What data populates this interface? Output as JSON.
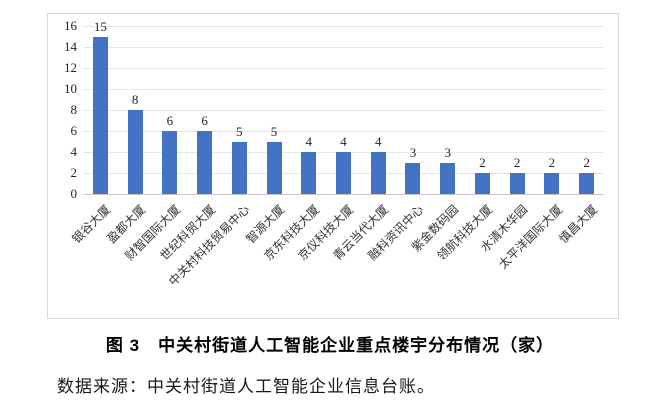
{
  "chart_data": {
    "type": "bar",
    "categories": [
      "银谷大厦",
      "盈都大厦",
      "财智国际大厦",
      "世纪科贸大厦",
      "中关村科技贸易中心",
      "智源大厦",
      "京东科技大厦",
      "京仪科技大厦",
      "青云当代大厦",
      "融科资讯中心",
      "紫金数码园",
      "领航科技大厦",
      "水清木华园",
      "太平洋国际大厦",
      "慎昌大厦"
    ],
    "values": [
      15,
      8,
      6,
      6,
      5,
      5,
      4,
      4,
      4,
      3,
      3,
      2,
      2,
      2,
      2
    ],
    "title": "",
    "xlabel": "",
    "ylabel": "",
    "ylim": [
      0,
      16
    ],
    "yticks": [
      0,
      2,
      4,
      6,
      8,
      10,
      12,
      14,
      16
    ],
    "grid": true,
    "legend": "none",
    "data_labels": true,
    "bar_color": "#4472C4"
  },
  "caption": {
    "text": "图 3　中关村街道人工智能企业重点楼宇分布情况（家）"
  },
  "source": {
    "text": "数据来源：中关村街道人工智能企业信息台账。"
  },
  "colors": {
    "bar": "#4472C4",
    "gridline": "#E6E6E6",
    "axis_line": "#C9C9C9",
    "chart_border": "#D9D9D9",
    "text": "#262626"
  }
}
